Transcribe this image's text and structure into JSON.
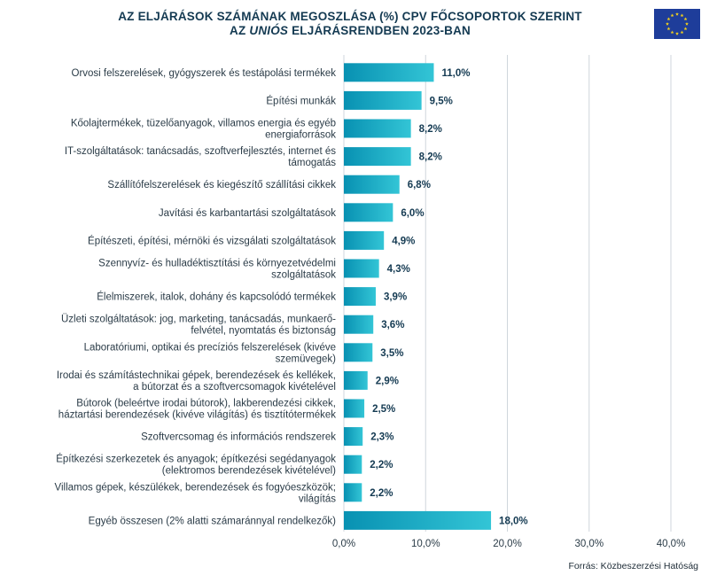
{
  "header": {
    "title_line1": "AZ ELJÁRÁSOK SZÁMÁNAK MEGOSZLÁSA (%) CPV FŐCSOPORTOK SZERINT",
    "title_line2_prefix": "AZ ",
    "title_line2_italic": "UNIÓS",
    "title_line2_suffix": " ELJÁRÁSRENDBEN 2023-BAN",
    "flag_icon": "eu-flag-icon"
  },
  "footer": {
    "source": "Forrás: Közbeszerzési Hatóság"
  },
  "colors": {
    "bar_start": "#0891b2",
    "bar_end": "#33c5d6",
    "title": "#143a52",
    "flag_blue": "#1e3d9a",
    "flag_star": "#f5d21a"
  },
  "chart_data": {
    "type": "bar",
    "orientation": "horizontal",
    "title": "AZ ELJÁRÁSOK SZÁMÁNAK MEGOSZLÁSA (%) CPV FŐCSOPORTOK SZERINT AZ UNIÓS ELJÁRÁSRENDBEN 2023-BAN",
    "categories": [
      [
        "Orvosi felszerelések, gyógyszerek és testápolási termékek"
      ],
      [
        "Építési munkák"
      ],
      [
        "Kőolajtermékek, tüzelőanyagok, villamos energia és egyéb",
        "energiaforrások"
      ],
      [
        "IT-szolgáltatások: tanácsadás, szoftverfejlesztés, internet és",
        "támogatás"
      ],
      [
        "Szállítófelszerelések és kiegészítő szállítási cikkek"
      ],
      [
        "Javítási és karbantartási szolgáltatások"
      ],
      [
        "Építészeti, építési, mérnöki és vizsgálati szolgáltatások"
      ],
      [
        "Szennyvíz- és hulladéktisztítási és környezetvédelmi",
        "szolgáltatások"
      ],
      [
        "Élelmiszerek, italok, dohány és kapcsolódó termékek"
      ],
      [
        "Üzleti szolgáltatások: jog, marketing, tanácsadás, munkaerő-",
        "felvétel, nyomtatás és biztonság"
      ],
      [
        "Laboratóriumi, optikai és precíziós felszerelések (kivéve",
        "szemüvegek)"
      ],
      [
        "Irodai és számítástechnikai gépek, berendezések és kellékek,",
        "a bútorzat és a szoftvercsomagok kivételével"
      ],
      [
        "Bútorok (beleértve irodai bútorok), lakberendezési cikkek,",
        "háztartási berendezések (kivéve világítás) és tisztítótermékek"
      ],
      [
        "Szoftvercsomag és információs rendszerek"
      ],
      [
        "Építkezési szerkezetek és anyagok; építkezési segédanyagok",
        "(elektromos berendezések kivételével)"
      ],
      [
        "Villamos gépek, készülékek, berendezések és fogyóeszközök;",
        "világítás"
      ],
      [
        "Egyéb összesen (2% alatti számaránnyal rendelkezők)"
      ]
    ],
    "values": [
      11.0,
      9.5,
      8.2,
      8.2,
      6.8,
      6.0,
      4.9,
      4.3,
      3.9,
      3.6,
      3.5,
      2.9,
      2.5,
      2.3,
      2.2,
      2.2,
      18.0
    ],
    "value_labels": [
      "11,0%",
      "9,5%",
      "8,2%",
      "8,2%",
      "6,8%",
      "6,0%",
      "4,9%",
      "4,3%",
      "3,9%",
      "3,6%",
      "3,5%",
      "2,9%",
      "2,5%",
      "2,3%",
      "2,2%",
      "2,2%",
      "18,0%"
    ],
    "xlim": [
      0,
      40
    ],
    "xticks": [
      0,
      10,
      20,
      30,
      40
    ],
    "xtick_labels": [
      "0,0%",
      "10,0%",
      "20,0%",
      "30,0%",
      "40,0%"
    ],
    "grid": "vertical",
    "legend": "none"
  }
}
